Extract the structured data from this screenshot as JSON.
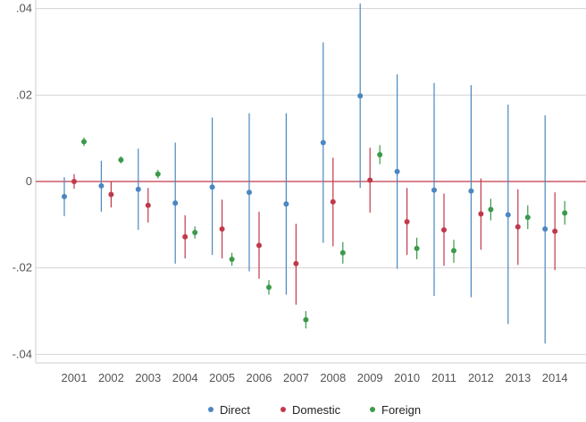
{
  "chart_data": {
    "type": "scatter",
    "categories": [
      "2001",
      "2002",
      "2003",
      "2004",
      "2005",
      "2006",
      "2007",
      "2008",
      "2009",
      "2010",
      "2011",
      "2012",
      "2013",
      "2014"
    ],
    "ylim": [
      -0.042,
      0.042
    ],
    "y_ticks": [
      0.04,
      0.02,
      0,
      -0.02,
      -0.04
    ],
    "y_tick_labels": [
      ".04",
      ".02",
      "0",
      "-.02",
      "-.04"
    ],
    "reference_line": {
      "y": 0,
      "color": "#c0394b"
    },
    "grid": true,
    "legend_position": "bottom",
    "series": [
      {
        "name": "Direct",
        "color": "#4a87c0",
        "points": [
          {
            "y": -0.0035,
            "lo": -0.008,
            "hi": 0.001
          },
          {
            "y": -0.001,
            "lo": -0.007,
            "hi": 0.0048
          },
          {
            "y": -0.0018,
            "lo": -0.0112,
            "hi": 0.0076
          },
          {
            "y": -0.005,
            "lo": -0.019,
            "hi": 0.009
          },
          {
            "y": -0.0013,
            "lo": -0.017,
            "hi": 0.0148
          },
          {
            "y": -0.0025,
            "lo": -0.0208,
            "hi": 0.0158
          },
          {
            "y": -0.0052,
            "lo": -0.0262,
            "hi": 0.0158
          },
          {
            "y": 0.009,
            "lo": -0.0142,
            "hi": 0.0322
          },
          {
            "y": 0.0198,
            "lo": -0.0015,
            "hi": 0.0412
          },
          {
            "y": 0.0023,
            "lo": -0.0202,
            "hi": 0.0248
          },
          {
            "y": -0.002,
            "lo": -0.0265,
            "hi": 0.0228
          },
          {
            "y": -0.0022,
            "lo": -0.0268,
            "hi": 0.0223
          },
          {
            "y": -0.0077,
            "lo": -0.033,
            "hi": 0.0178
          },
          {
            "y": -0.011,
            "lo": -0.0375,
            "hi": 0.0153
          }
        ]
      },
      {
        "name": "Domestic",
        "color": "#c0394b",
        "points": [
          {
            "y": 0.0,
            "lo": -0.0017,
            "hi": 0.0017
          },
          {
            "y": -0.003,
            "lo": -0.006,
            "hi": 0.0
          },
          {
            "y": -0.0055,
            "lo": -0.0095,
            "hi": -0.0015
          },
          {
            "y": -0.0128,
            "lo": -0.0178,
            "hi": -0.0078
          },
          {
            "y": -0.011,
            "lo": -0.0178,
            "hi": -0.0042
          },
          {
            "y": -0.0148,
            "lo": -0.0225,
            "hi": -0.007
          },
          {
            "y": -0.019,
            "lo": -0.0285,
            "hi": -0.0098
          },
          {
            "y": -0.0047,
            "lo": -0.015,
            "hi": 0.0055
          },
          {
            "y": 0.0003,
            "lo": -0.0072,
            "hi": 0.0078
          },
          {
            "y": -0.0093,
            "lo": -0.017,
            "hi": -0.0015
          },
          {
            "y": -0.0112,
            "lo": -0.0195,
            "hi": -0.0028
          },
          {
            "y": -0.0075,
            "lo": -0.0158,
            "hi": 0.0007
          },
          {
            "y": -0.0105,
            "lo": -0.0193,
            "hi": -0.0018
          },
          {
            "y": -0.0115,
            "lo": -0.0205,
            "hi": -0.0025
          }
        ]
      },
      {
        "name": "Foreign",
        "color": "#3c9a4b",
        "points": [
          {
            "y": 0.0092,
            "lo": 0.0082,
            "hi": 0.0102
          },
          {
            "y": 0.005,
            "lo": 0.0042,
            "hi": 0.0058
          },
          {
            "y": 0.0017,
            "lo": 0.0007,
            "hi": 0.0027
          },
          {
            "y": -0.0118,
            "lo": -0.0132,
            "hi": -0.0104
          },
          {
            "y": -0.018,
            "lo": -0.0195,
            "hi": -0.0165
          },
          {
            "y": -0.0245,
            "lo": -0.0262,
            "hi": -0.0228
          },
          {
            "y": -0.032,
            "lo": -0.034,
            "hi": -0.03
          },
          {
            "y": -0.0165,
            "lo": -0.019,
            "hi": -0.014
          },
          {
            "y": 0.0062,
            "lo": 0.004,
            "hi": 0.0084
          },
          {
            "y": -0.0155,
            "lo": -0.018,
            "hi": -0.013
          },
          {
            "y": -0.016,
            "lo": -0.0188,
            "hi": -0.0135
          },
          {
            "y": -0.0065,
            "lo": -0.009,
            "hi": -0.004
          },
          {
            "y": -0.0083,
            "lo": -0.011,
            "hi": -0.0055
          },
          {
            "y": -0.0073,
            "lo": -0.01,
            "hi": -0.0045
          }
        ]
      }
    ]
  }
}
